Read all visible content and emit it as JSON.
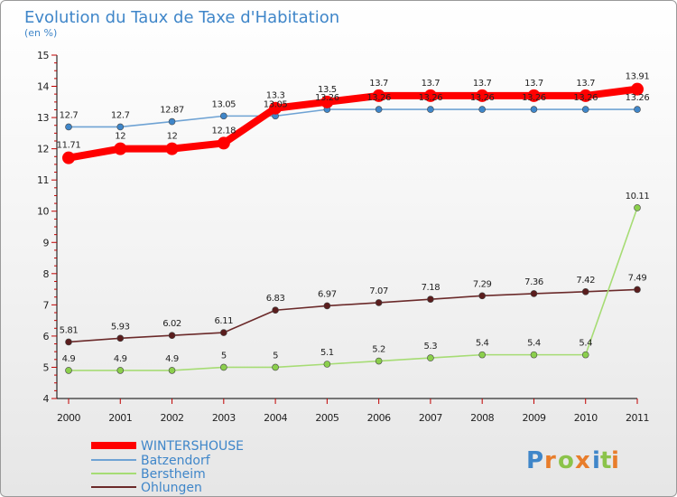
{
  "header": {
    "title": "Evolution du Taux de Taxe d'Habitation",
    "subtitle": "(en %)"
  },
  "logo": {
    "letters": [
      "P",
      "r",
      "o",
      "x",
      "i",
      "t",
      "i"
    ],
    "colors": [
      "#3f86c9",
      "#e87d2b",
      "#8bc34a",
      "#e87d2b",
      "#3f86c9",
      "#8bc34a",
      "#e87d2b"
    ]
  },
  "chart_data": {
    "type": "line",
    "x": [
      "2000",
      "2001",
      "2002",
      "2003",
      "2004",
      "2005",
      "2006",
      "2007",
      "2008",
      "2009",
      "2010",
      "2011"
    ],
    "ylim": [
      4,
      15
    ],
    "yticks": [
      "4",
      "5",
      "6",
      "7",
      "8",
      "9",
      "10",
      "11",
      "12",
      "13",
      "14",
      "15"
    ],
    "grid": false,
    "legend_position": "bottom-left",
    "series": [
      {
        "name": "WINTERSHOUSE",
        "color": "#ff0000",
        "marker_fill": "#ff0000",
        "values": [
          11.71,
          12,
          12,
          12.18,
          13.3,
          13.5,
          13.7,
          13.7,
          13.7,
          13.7,
          13.7,
          13.91
        ],
        "labels": [
          "11.71",
          "12",
          "12",
          "12.18",
          "13.3",
          "13.5",
          "13.7",
          "13.7",
          "13.7",
          "13.7",
          "13.7",
          "13.91"
        ]
      },
      {
        "name": "Batzendorf",
        "color": "#6fa3d4",
        "marker_fill": "#3f86c9",
        "values": [
          12.7,
          12.7,
          12.87,
          13.05,
          13.05,
          13.26,
          13.26,
          13.26,
          13.26,
          13.26,
          13.26,
          13.26
        ],
        "labels": [
          "12.7",
          "12.7",
          "12.87",
          "13.05",
          "13.05",
          "13.26",
          "13.26",
          "13.26",
          "13.26",
          "13.26",
          "13.26",
          "13.26"
        ]
      },
      {
        "name": "Berstheim",
        "color": "#a6dc74",
        "marker_fill": "#8bcf4c",
        "values": [
          4.9,
          4.9,
          4.9,
          5,
          5,
          5.1,
          5.2,
          5.3,
          5.4,
          5.4,
          5.4,
          10.11
        ],
        "labels": [
          "4.9",
          "4.9",
          "4.9",
          "5",
          "5",
          "5.1",
          "5.2",
          "5.3",
          "5.4",
          "5.4",
          "5.4",
          "10.11"
        ]
      },
      {
        "name": "Ohlungen",
        "color": "#6b2a2a",
        "marker_fill": "#5a1d1d",
        "values": [
          5.81,
          5.93,
          6.02,
          6.11,
          6.83,
          6.97,
          7.07,
          7.18,
          7.29,
          7.36,
          7.42,
          7.49
        ],
        "labels": [
          "5.81",
          "5.93",
          "6.02",
          "6.11",
          "6.83",
          "6.97",
          "7.07",
          "7.18",
          "7.29",
          "7.36",
          "7.42",
          "7.49"
        ]
      }
    ]
  }
}
